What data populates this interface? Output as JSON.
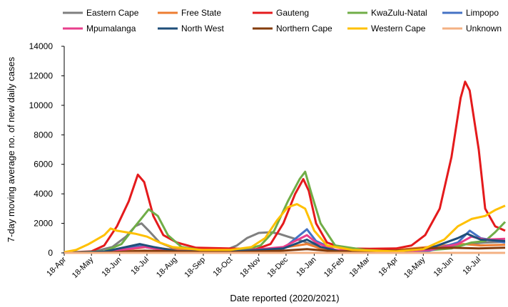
{
  "chart_data": {
    "type": "line",
    "xlabel": "Date reported (2020/2021)",
    "ylabel": "7-day moving average no. of new daily cases",
    "ylim": [
      0,
      14000
    ],
    "yticks": [
      0,
      2000,
      4000,
      6000,
      8000,
      10000,
      12000,
      14000
    ],
    "xlim": [
      "2020-04-18",
      "2021-08-16"
    ],
    "xticks": [
      {
        "label": "18-Apr",
        "date": "2020-04-18"
      },
      {
        "label": "18-May",
        "date": "2020-05-18"
      },
      {
        "label": "18-Jun",
        "date": "2020-06-18"
      },
      {
        "label": "18-Jul",
        "date": "2020-07-18"
      },
      {
        "label": "18-Aug",
        "date": "2020-08-18"
      },
      {
        "label": "18-Sep",
        "date": "2020-09-18"
      },
      {
        "label": "18-Oct",
        "date": "2020-10-18"
      },
      {
        "label": "18-Nov",
        "date": "2020-11-18"
      },
      {
        "label": "18-Dec",
        "date": "2020-12-18"
      },
      {
        "label": "18-Jan",
        "date": "2021-01-18"
      },
      {
        "label": "18-Feb",
        "date": "2021-02-18"
      },
      {
        "label": "18-Mar",
        "date": "2021-03-18"
      },
      {
        "label": "18-Apr",
        "date": "2021-04-18"
      },
      {
        "label": "18-May",
        "date": "2021-05-18"
      },
      {
        "label": "18-Jun",
        "date": "2021-06-18"
      },
      {
        "label": "18-Jul",
        "date": "2021-07-18"
      }
    ],
    "grid": false,
    "legend_position": "top",
    "series": [
      {
        "name": "Eastern Cape",
        "color": "#7f7f7f",
        "points": [
          [
            "2020-04-18",
            10
          ],
          [
            "2020-05-18",
            50
          ],
          [
            "2020-06-10",
            400
          ],
          [
            "2020-06-25",
            1100
          ],
          [
            "2020-07-05",
            1800
          ],
          [
            "2020-07-12",
            2000
          ],
          [
            "2020-07-20",
            1500
          ],
          [
            "2020-08-01",
            700
          ],
          [
            "2020-08-15",
            350
          ],
          [
            "2020-09-15",
            150
          ],
          [
            "2020-10-15",
            250
          ],
          [
            "2020-10-25",
            500
          ],
          [
            "2020-11-05",
            1000
          ],
          [
            "2020-11-18",
            1350
          ],
          [
            "2020-12-01",
            1400
          ],
          [
            "2020-12-10",
            1300
          ],
          [
            "2020-12-20",
            1100
          ],
          [
            "2021-01-05",
            800
          ],
          [
            "2021-01-18",
            500
          ],
          [
            "2021-02-05",
            200
          ],
          [
            "2021-03-15",
            100
          ],
          [
            "2021-04-18",
            80
          ],
          [
            "2021-05-18",
            200
          ],
          [
            "2021-06-15",
            400
          ],
          [
            "2021-07-05",
            600
          ],
          [
            "2021-07-25",
            700
          ],
          [
            "2021-08-16",
            750
          ]
        ]
      },
      {
        "name": "Free State",
        "color": "#ed7d31",
        "points": [
          [
            "2020-04-18",
            5
          ],
          [
            "2020-06-15",
            100
          ],
          [
            "2020-07-18",
            400
          ],
          [
            "2020-08-10",
            250
          ],
          [
            "2020-09-15",
            80
          ],
          [
            "2020-11-15",
            100
          ],
          [
            "2020-12-20",
            400
          ],
          [
            "2021-01-10",
            600
          ],
          [
            "2021-01-25",
            300
          ],
          [
            "2021-03-01",
            100
          ],
          [
            "2021-04-18",
            200
          ],
          [
            "2021-05-15",
            350
          ],
          [
            "2021-06-10",
            500
          ],
          [
            "2021-07-01",
            600
          ],
          [
            "2021-07-20",
            500
          ],
          [
            "2021-08-16",
            550
          ]
        ]
      },
      {
        "name": "Gauteng",
        "color": "#e41a1c",
        "points": [
          [
            "2020-04-18",
            20
          ],
          [
            "2020-05-18",
            100
          ],
          [
            "2020-06-01",
            500
          ],
          [
            "2020-06-15",
            1800
          ],
          [
            "2020-06-28",
            3500
          ],
          [
            "2020-07-08",
            5300
          ],
          [
            "2020-07-15",
            4800
          ],
          [
            "2020-07-25",
            2500
          ],
          [
            "2020-08-05",
            1200
          ],
          [
            "2020-08-20",
            700
          ],
          [
            "2020-09-10",
            350
          ],
          [
            "2020-10-15",
            300
          ],
          [
            "2020-11-15",
            250
          ],
          [
            "2020-12-01",
            600
          ],
          [
            "2020-12-15",
            2000
          ],
          [
            "2020-12-28",
            4000
          ],
          [
            "2021-01-06",
            5000
          ],
          [
            "2021-01-12",
            4200
          ],
          [
            "2021-01-20",
            2000
          ],
          [
            "2021-02-01",
            700
          ],
          [
            "2021-02-20",
            300
          ],
          [
            "2021-03-20",
            280
          ],
          [
            "2021-04-18",
            300
          ],
          [
            "2021-05-05",
            500
          ],
          [
            "2021-05-20",
            1200
          ],
          [
            "2021-06-05",
            3000
          ],
          [
            "2021-06-18",
            6500
          ],
          [
            "2021-06-28",
            10500
          ],
          [
            "2021-07-03",
            11600
          ],
          [
            "2021-07-08",
            11000
          ],
          [
            "2021-07-18",
            7000
          ],
          [
            "2021-07-25",
            3000
          ],
          [
            "2021-08-05",
            1800
          ],
          [
            "2021-08-16",
            1500
          ]
        ]
      },
      {
        "name": "KwaZulu-Natal",
        "color": "#70ad47",
        "points": [
          [
            "2020-04-18",
            10
          ],
          [
            "2020-06-01",
            100
          ],
          [
            "2020-06-20",
            600
          ],
          [
            "2020-07-05",
            1800
          ],
          [
            "2020-07-20",
            2950
          ],
          [
            "2020-07-30",
            2500
          ],
          [
            "2020-08-10",
            1200
          ],
          [
            "2020-08-25",
            400
          ],
          [
            "2020-09-20",
            150
          ],
          [
            "2020-11-01",
            200
          ],
          [
            "2020-11-20",
            500
          ],
          [
            "2020-12-05",
            1500
          ],
          [
            "2020-12-20",
            3500
          ],
          [
            "2021-01-02",
            5000
          ],
          [
            "2021-01-08",
            5500
          ],
          [
            "2021-01-15",
            4000
          ],
          [
            "2021-01-25",
            2000
          ],
          [
            "2021-02-10",
            500
          ],
          [
            "2021-03-15",
            200
          ],
          [
            "2021-04-18",
            100
          ],
          [
            "2021-05-18",
            150
          ],
          [
            "2021-06-18",
            300
          ],
          [
            "2021-07-10",
            700
          ],
          [
            "2021-07-25",
            800
          ],
          [
            "2021-08-05",
            1400
          ],
          [
            "2021-08-16",
            2100
          ]
        ]
      },
      {
        "name": "Limpopo",
        "color": "#4472c4",
        "points": [
          [
            "2020-04-18",
            0
          ],
          [
            "2020-06-01",
            50
          ],
          [
            "2020-07-10",
            450
          ],
          [
            "2020-07-25",
            300
          ],
          [
            "2020-08-20",
            80
          ],
          [
            "2020-10-18",
            50
          ],
          [
            "2020-12-15",
            300
          ],
          [
            "2021-01-10",
            1600
          ],
          [
            "2021-01-20",
            800
          ],
          [
            "2021-02-10",
            200
          ],
          [
            "2021-04-18",
            50
          ],
          [
            "2021-05-25",
            150
          ],
          [
            "2021-06-25",
            700
          ],
          [
            "2021-07-08",
            1500
          ],
          [
            "2021-07-20",
            1000
          ],
          [
            "2021-08-16",
            700
          ]
        ]
      },
      {
        "name": "Mpumalanga",
        "color": "#e83e8c",
        "points": [
          [
            "2020-04-18",
            0
          ],
          [
            "2020-06-01",
            50
          ],
          [
            "2020-07-15",
            400
          ],
          [
            "2020-07-30",
            250
          ],
          [
            "2020-08-25",
            100
          ],
          [
            "2020-10-18",
            60
          ],
          [
            "2020-12-15",
            400
          ],
          [
            "2021-01-10",
            1200
          ],
          [
            "2021-01-20",
            700
          ],
          [
            "2021-02-10",
            200
          ],
          [
            "2021-04-18",
            80
          ],
          [
            "2021-05-25",
            200
          ],
          [
            "2021-06-25",
            600
          ],
          [
            "2021-07-10",
            1100
          ],
          [
            "2021-07-25",
            900
          ],
          [
            "2021-08-16",
            950
          ]
        ]
      },
      {
        "name": "North West",
        "color": "#1f4e79",
        "points": [
          [
            "2020-04-18",
            0
          ],
          [
            "2020-06-01",
            80
          ],
          [
            "2020-07-10",
            600
          ],
          [
            "2020-07-25",
            400
          ],
          [
            "2020-08-20",
            120
          ],
          [
            "2020-10-18",
            80
          ],
          [
            "2020-12-15",
            300
          ],
          [
            "2021-01-10",
            900
          ],
          [
            "2021-01-25",
            400
          ],
          [
            "2021-02-15",
            100
          ],
          [
            "2021-04-18",
            80
          ],
          [
            "2021-05-25",
            300
          ],
          [
            "2021-06-25",
            1000
          ],
          [
            "2021-07-05",
            1300
          ],
          [
            "2021-07-20",
            900
          ],
          [
            "2021-08-16",
            800
          ]
        ]
      },
      {
        "name": "Northern Cape",
        "color": "#843c0c",
        "points": [
          [
            "2020-04-18",
            0
          ],
          [
            "2020-06-01",
            20
          ],
          [
            "2020-07-15",
            150
          ],
          [
            "2020-08-15",
            100
          ],
          [
            "2020-10-18",
            50
          ],
          [
            "2020-12-15",
            150
          ],
          [
            "2021-01-10",
            250
          ],
          [
            "2021-02-10",
            100
          ],
          [
            "2021-04-18",
            150
          ],
          [
            "2021-05-18",
            300
          ],
          [
            "2021-06-18",
            350
          ],
          [
            "2021-07-18",
            300
          ],
          [
            "2021-08-16",
            350
          ]
        ]
      },
      {
        "name": "Western Cape",
        "color": "#ffc000",
        "points": [
          [
            "2020-04-18",
            50
          ],
          [
            "2020-05-01",
            200
          ],
          [
            "2020-05-15",
            600
          ],
          [
            "2020-06-01",
            1200
          ],
          [
            "2020-06-08",
            1650
          ],
          [
            "2020-06-15",
            1500
          ],
          [
            "2020-06-25",
            1400
          ],
          [
            "2020-07-05",
            1300
          ],
          [
            "2020-07-18",
            1100
          ],
          [
            "2020-08-01",
            700
          ],
          [
            "2020-08-15",
            400
          ],
          [
            "2020-09-15",
            200
          ],
          [
            "2020-10-18",
            200
          ],
          [
            "2020-11-10",
            400
          ],
          [
            "2020-11-25",
            1000
          ],
          [
            "2020-12-08",
            2200
          ],
          [
            "2020-12-20",
            3100
          ],
          [
            "2020-12-30",
            3300
          ],
          [
            "2021-01-08",
            3000
          ],
          [
            "2021-01-18",
            1500
          ],
          [
            "2021-02-01",
            500
          ],
          [
            "2021-03-01",
            200
          ],
          [
            "2021-04-18",
            100
          ],
          [
            "2021-05-18",
            250
          ],
          [
            "2021-06-10",
            900
          ],
          [
            "2021-06-25",
            1800
          ],
          [
            "2021-07-10",
            2300
          ],
          [
            "2021-07-25",
            2500
          ],
          [
            "2021-08-05",
            2900
          ],
          [
            "2021-08-16",
            3200
          ]
        ]
      },
      {
        "name": "Unknown",
        "color": "#f4b183",
        "points": [
          [
            "2020-04-18",
            0
          ],
          [
            "2021-08-16",
            0
          ]
        ]
      }
    ]
  }
}
